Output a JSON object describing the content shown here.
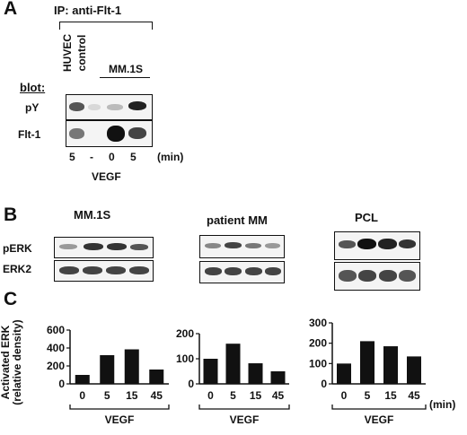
{
  "panelA": {
    "letter": "A",
    "ip_label": "IP: anti-Flt-1",
    "lane_labels": [
      "HUVEC",
      "control"
    ],
    "mm_label": "MM.1S",
    "blot_label": "blot:",
    "row_labels": [
      "pY",
      "Flt-1"
    ],
    "time_values": [
      "5",
      "-",
      "0",
      "5"
    ],
    "time_unit": "(min)",
    "treatment": "VEGF"
  },
  "panelB": {
    "letter": "B",
    "titles": [
      "MM.1S",
      "patient MM",
      "PCL"
    ],
    "row_labels": [
      "pERK",
      "ERK2"
    ]
  },
  "panelC": {
    "letter": "C",
    "ylabel_line1": "Activated ERK",
    "ylabel_line2": "(relative density)",
    "xlabel": "VEGF",
    "x_unit": "(min)"
  },
  "chart_data": [
    {
      "type": "bar",
      "title": "",
      "categories": [
        "0",
        "5",
        "15",
        "45"
      ],
      "values": [
        100,
        320,
        385,
        160
      ],
      "ylim": [
        0,
        600
      ],
      "yticks": [
        0,
        200,
        400,
        600
      ],
      "xlabel": "VEGF",
      "ylabel": "Activated ERK (relative density)",
      "bar_color": "#111111"
    },
    {
      "type": "bar",
      "title": "",
      "categories": [
        "0",
        "5",
        "15",
        "45"
      ],
      "values": [
        100,
        160,
        82,
        50
      ],
      "ylim": [
        0,
        200
      ],
      "yticks": [
        0,
        100,
        200
      ],
      "xlabel": "VEGF",
      "ylabel": "",
      "bar_color": "#111111"
    },
    {
      "type": "bar",
      "title": "",
      "categories": [
        "0",
        "5",
        "15",
        "45"
      ],
      "values": [
        100,
        210,
        185,
        135
      ],
      "ylim": [
        0,
        300
      ],
      "yticks": [
        0,
        100,
        200,
        300
      ],
      "xlabel": "VEGF",
      "ylabel": "",
      "bar_color": "#111111"
    }
  ]
}
